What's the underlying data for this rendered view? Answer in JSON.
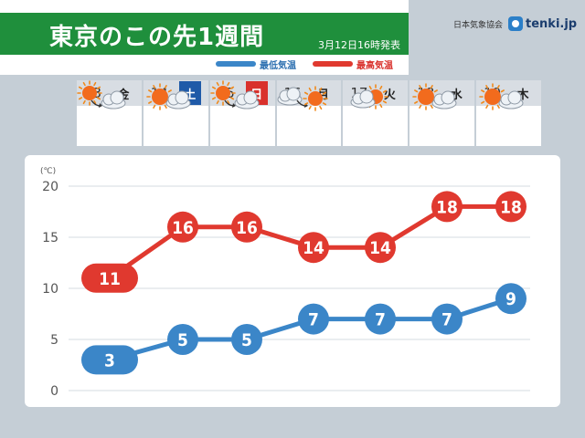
{
  "header": {
    "title": "東京のこの先1週間",
    "issued": "3月12日16時発表",
    "legend_low": "最低気温",
    "legend_high": "最高気温",
    "org": "日本気象協会",
    "brand": "tenki.jp"
  },
  "days": [
    {
      "date": "13",
      "weekday": "金",
      "icon": "sun-to-cloud-icon"
    },
    {
      "date": "14",
      "weekday": "土",
      "icon": "sun-and-cloud-icon"
    },
    {
      "date": "15",
      "weekday": "日",
      "icon": "sun-to-cloud-icon"
    },
    {
      "date": "16",
      "weekday": "月",
      "icon": "cloud-to-sun-icon"
    },
    {
      "date": "17",
      "weekday": "火",
      "icon": "cloud-and-sun-icon"
    },
    {
      "date": "18",
      "weekday": "水",
      "icon": "sun-and-cloud-icon"
    },
    {
      "date": "19",
      "weekday": "木",
      "icon": "sun-and-cloud-icon"
    }
  ],
  "colors": {
    "high": "#e0392f",
    "low": "#3b86c8",
    "title_band": "#1f8f3c",
    "saturday": "#1f5aa8",
    "sunday": "#d9312c"
  },
  "chart_data": {
    "type": "line",
    "unit_label": "(℃)",
    "ylim": [
      0,
      20
    ],
    "yticks": [
      "0",
      "5",
      "10",
      "15",
      "20"
    ],
    "categories": [
      "13",
      "14",
      "15",
      "16",
      "17",
      "18",
      "19"
    ],
    "series": [
      {
        "name": "最高気温",
        "values": [
          11,
          16,
          16,
          14,
          14,
          18,
          18
        ]
      },
      {
        "name": "最低気温",
        "values": [
          3,
          5,
          5,
          7,
          7,
          7,
          9
        ]
      }
    ],
    "grid": true
  }
}
